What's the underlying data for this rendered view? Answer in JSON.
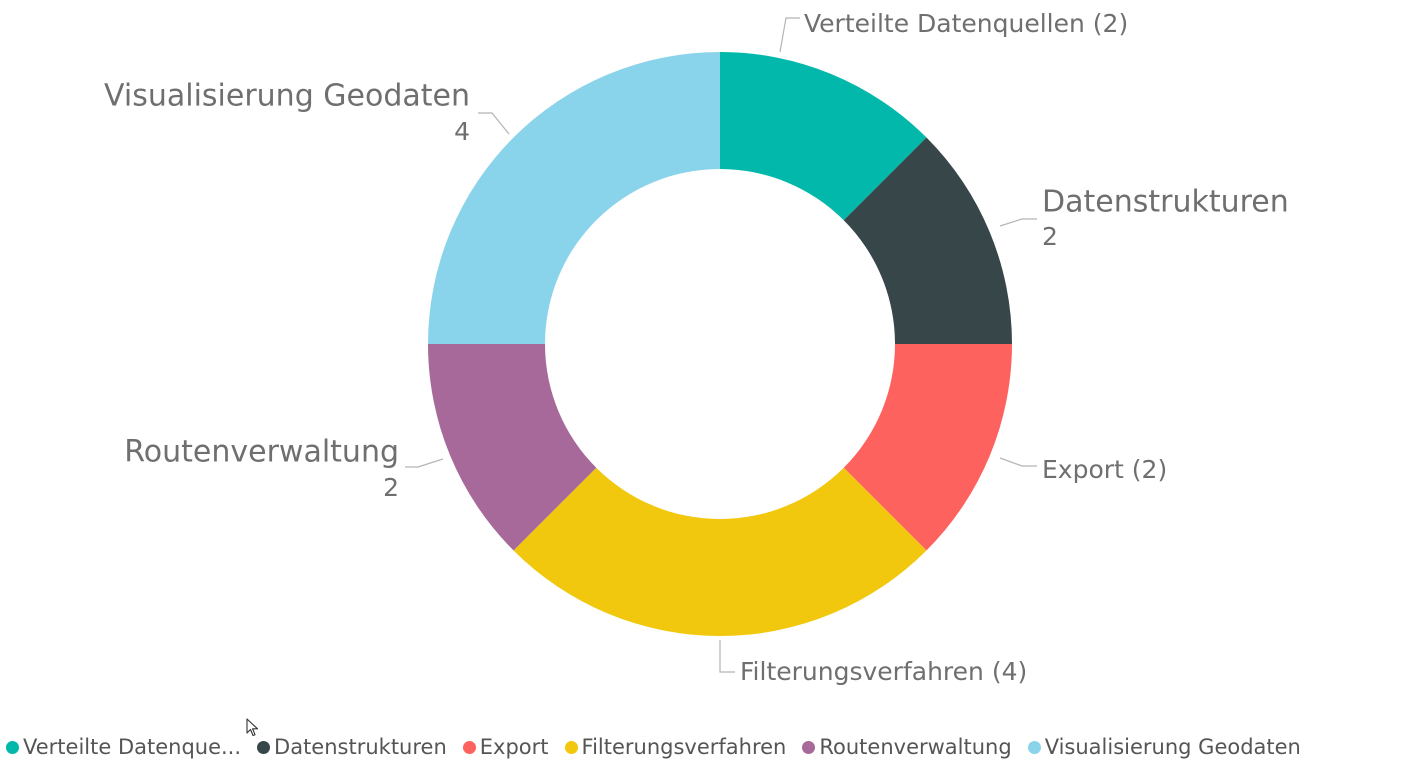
{
  "chart_data": {
    "type": "pie",
    "style": "donut",
    "categories": [
      "Verteilte Datenquellen",
      "Datenstrukturen",
      "Export",
      "Filterungsverfahren",
      "Routenverwaltung",
      "Visualisierung Geodaten"
    ],
    "values": [
      2,
      2,
      2,
      4,
      2,
      4
    ],
    "colors": [
      "#01B8AA",
      "#374649",
      "#FD625E",
      "#F2C80F",
      "#A66999",
      "#8AD4EB"
    ],
    "data_labels": [
      {
        "name": "Verteilte Datenquellen",
        "value": "(2)"
      },
      {
        "name": "Datenstrukturen",
        "value": "2"
      },
      {
        "name": "Export",
        "value": "(2)"
      },
      {
        "name": "Filterungsverfahren",
        "value": "(4)"
      },
      {
        "name": "Routenverwaltung",
        "value": "2"
      },
      {
        "name": "Visualisierung Geodaten",
        "value": "4"
      }
    ],
    "legend": {
      "position": "bottom-left",
      "items": [
        "Verteilte Datenque...",
        "Datenstrukturen",
        "Export",
        "Filterungsverfahren",
        "Routenverwaltung",
        "Visualisierung Geodaten"
      ]
    }
  }
}
